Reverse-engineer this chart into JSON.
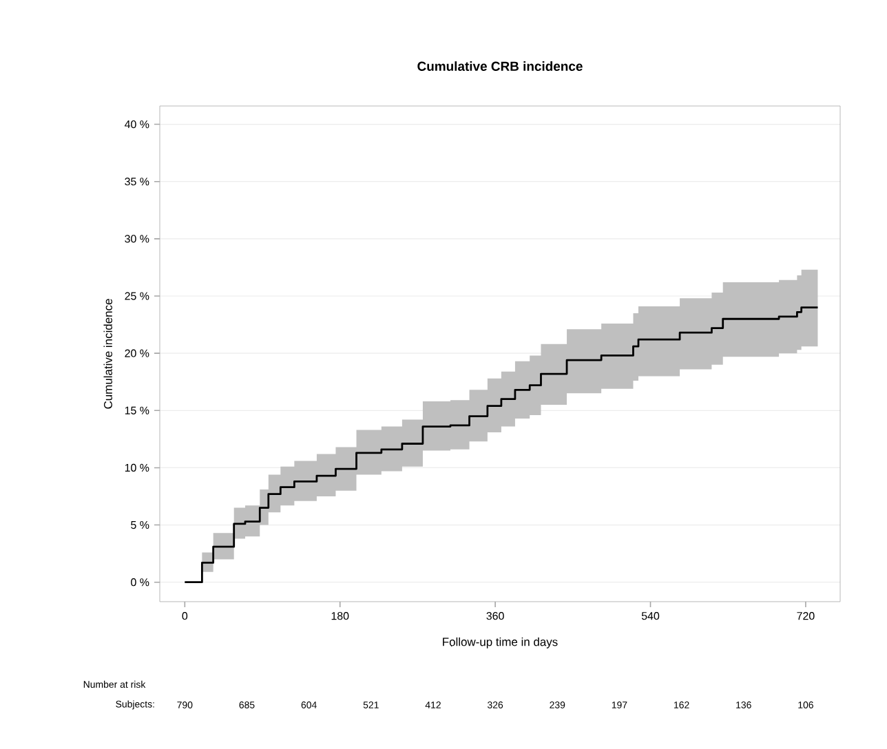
{
  "chart_data": {
    "type": "step",
    "title": "Cumulative CRB incidence",
    "xlabel": "Follow-up time in days",
    "ylabel": "Cumulative incidence",
    "series": [
      {
        "color": "#000000",
        "x": [
          0,
          8,
          20,
          33,
          57,
          70,
          87,
          97,
          111,
          127,
          153,
          175,
          199,
          228,
          252,
          276,
          308,
          330,
          351,
          367,
          383,
          400,
          413,
          443,
          483,
          520,
          526,
          574,
          611,
          624,
          689,
          710,
          715,
          734
        ],
        "values": [
          0,
          0,
          1.7,
          3.1,
          5.1,
          5.3,
          6.5,
          7.7,
          8.3,
          8.8,
          9.3,
          9.9,
          11.3,
          11.6,
          12.1,
          13.6,
          13.7,
          14.5,
          15.4,
          16.0,
          16.8,
          17.2,
          18.2,
          19.4,
          19.8,
          20.6,
          21.2,
          21.8,
          22.2,
          23.0,
          23.2,
          23.6,
          24.0,
          24.0
        ],
        "lower": [
          0,
          0,
          0.9,
          2.0,
          3.8,
          4.0,
          5.0,
          6.1,
          6.7,
          7.1,
          7.5,
          8.0,
          9.4,
          9.7,
          10.1,
          11.5,
          11.6,
          12.3,
          13.1,
          13.6,
          14.3,
          14.6,
          15.5,
          16.5,
          16.9,
          17.6,
          18.0,
          18.6,
          19.0,
          19.7,
          20.0,
          20.3,
          20.6,
          20.6
        ],
        "upper": [
          0,
          0,
          2.6,
          4.3,
          6.5,
          6.7,
          8.1,
          9.4,
          10.1,
          10.6,
          11.2,
          11.8,
          13.3,
          13.6,
          14.2,
          15.8,
          15.9,
          16.8,
          17.8,
          18.4,
          19.3,
          19.8,
          20.8,
          22.1,
          22.6,
          23.5,
          24.1,
          24.8,
          25.3,
          26.2,
          26.4,
          26.8,
          27.3,
          27.3
        ]
      }
    ],
    "xlim": [
      -29,
      760
    ],
    "ylim": [
      -1.7,
      41.6
    ],
    "xticks": [
      0,
      180,
      360,
      540,
      720
    ],
    "yticks": [
      {
        "value": 0,
        "label": "0 %"
      },
      {
        "value": 5,
        "label": "5 %"
      },
      {
        "value": 10,
        "label": "10 %"
      },
      {
        "value": 15,
        "label": "15 %"
      },
      {
        "value": 20,
        "label": "20 %"
      },
      {
        "value": 25,
        "label": "25 %"
      },
      {
        "value": 30,
        "label": "30 %"
      },
      {
        "value": 35,
        "label": "35 %"
      },
      {
        "value": 40,
        "label": "40 %"
      }
    ],
    "grid": "y",
    "annotations": [
      "Number at risk",
      "Subjects:",
      "790",
      "685",
      "604",
      "521",
      "412",
      "326",
      "239",
      "197",
      "162",
      "136",
      "106"
    ]
  }
}
